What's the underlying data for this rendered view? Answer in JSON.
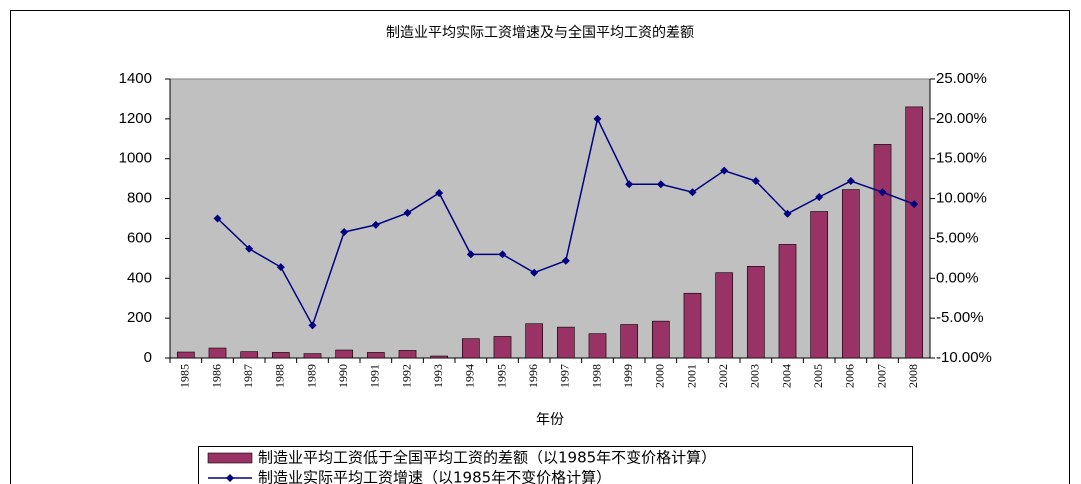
{
  "chart_data": {
    "type": "bar-line",
    "title": "制造业平均实际工资增速及与全国平均工资的差额",
    "x_label": "年份",
    "categories": [
      "1985",
      "1986",
      "1987",
      "1988",
      "1989",
      "1990",
      "1991",
      "1992",
      "1993",
      "1994",
      "1995",
      "1996",
      "1997",
      "1998",
      "1999",
      "2000",
      "2001",
      "2002",
      "2003",
      "2004",
      "2005",
      "2006",
      "2007",
      "2008"
    ],
    "series": [
      {
        "name": "制造业平均工资低于全国平均工资的差额（以1985年不变价格计算）",
        "type": "bar",
        "color": "#993366",
        "values": [
          30,
          50,
          32,
          28,
          22,
          40,
          28,
          38,
          10,
          97,
          108,
          172,
          155,
          122,
          168,
          185,
          325,
          428,
          460,
          570,
          735,
          845,
          1072,
          1260
        ]
      },
      {
        "name": "制造业实际平均工资增速（以1985年不变价格计算）",
        "type": "line",
        "axis": "y2",
        "color": "#000080",
        "values": [
          null,
          7.5,
          3.7,
          1.4,
          -5.9,
          5.8,
          6.7,
          8.2,
          10.7,
          3.0,
          3.0,
          0.7,
          2.2,
          20.0,
          11.8,
          11.8,
          10.8,
          13.5,
          12.2,
          8.1,
          10.2,
          12.2,
          10.8,
          9.3
        ]
      }
    ],
    "ylim": [
      0,
      1400
    ],
    "yticks": [
      0,
      200,
      400,
      600,
      800,
      1000,
      1200,
      1400
    ],
    "y2lim": [
      -10,
      25
    ],
    "y2ticks": [
      {
        "value": -10,
        "label": "-10.00%"
      },
      {
        "value": -5,
        "label": "-5.00%"
      },
      {
        "value": 0,
        "label": "0.00%"
      },
      {
        "value": 5,
        "label": "5.00%"
      },
      {
        "value": 10,
        "label": "10.00%"
      },
      {
        "value": 15,
        "label": "15.00%"
      },
      {
        "value": 20,
        "label": "20.00%"
      },
      {
        "value": 25,
        "label": "25.00%"
      }
    ],
    "plot_background": "#c0c0c0",
    "legend": "bottom"
  }
}
